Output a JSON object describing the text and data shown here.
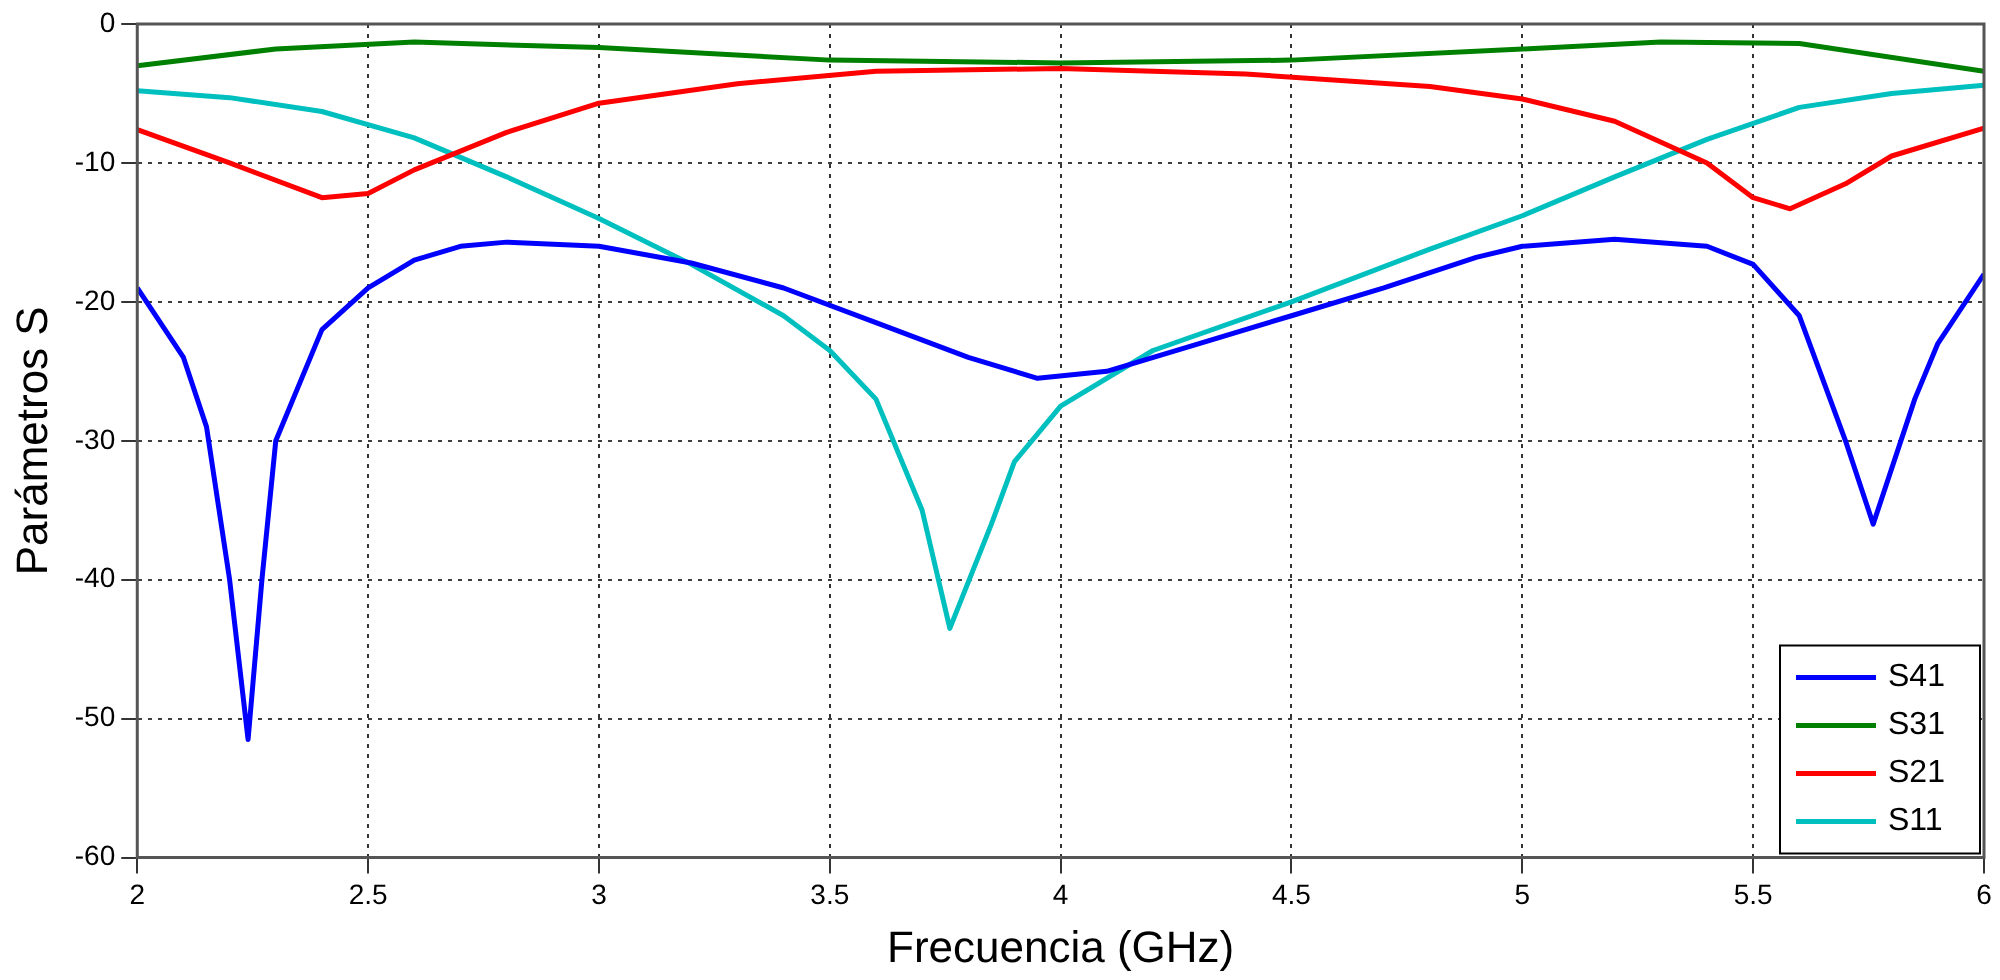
{
  "chart_data": {
    "type": "line",
    "xlabel": "Frecuencia (GHz)",
    "ylabel": "Parámetros S",
    "xlim": [
      2,
      6
    ],
    "xticks": [
      2,
      2.5,
      3,
      3.5,
      4,
      4.5,
      5,
      5.5,
      6
    ],
    "ylim": [
      -60,
      0
    ],
    "yticks": [
      -60,
      -50,
      -40,
      -30,
      -20,
      -10,
      0
    ],
    "grid": true,
    "line_style": "solid",
    "legend": "bottom right",
    "marker": "none",
    "series": [
      {
        "name": "S41",
        "color": "#0000ff",
        "x": [
          2.0,
          2.1,
          2.15,
          2.2,
          2.24,
          2.27,
          2.3,
          2.4,
          2.5,
          2.6,
          2.7,
          2.8,
          3.0,
          3.2,
          3.4,
          3.6,
          3.8,
          3.95,
          4.1,
          4.3,
          4.5,
          4.7,
          4.9,
          5.0,
          5.2,
          5.4,
          5.5,
          5.6,
          5.7,
          5.76,
          5.85,
          5.9,
          6.0
        ],
        "values": [
          -19,
          -24,
          -29,
          -40,
          -51.5,
          -40,
          -30,
          -22,
          -19,
          -17,
          -16,
          -15.7,
          -16,
          -17.2,
          -19,
          -21.5,
          -24,
          -25.5,
          -25,
          -23,
          -21,
          -19,
          -16.8,
          -16,
          -15.5,
          -16,
          -17.3,
          -21,
          -30,
          -36,
          -27,
          -23,
          -18
        ]
      },
      {
        "name": "S31",
        "color": "#008000",
        "x": [
          2.0,
          2.3,
          2.6,
          3.0,
          3.5,
          4.0,
          4.5,
          5.0,
          5.3,
          5.6,
          6.0
        ],
        "values": [
          -3,
          -1.8,
          -1.3,
          -1.7,
          -2.6,
          -2.8,
          -2.6,
          -1.8,
          -1.3,
          -1.4,
          -3.4
        ]
      },
      {
        "name": "S21",
        "color": "#ff0000",
        "x": [
          2.0,
          2.2,
          2.4,
          2.5,
          2.6,
          2.8,
          3.0,
          3.3,
          3.6,
          4.0,
          4.4,
          4.8,
          5.0,
          5.2,
          5.4,
          5.5,
          5.58,
          5.7,
          5.8,
          6.0
        ],
        "values": [
          -7.6,
          -10,
          -12.5,
          -12.2,
          -10.5,
          -7.8,
          -5.7,
          -4.3,
          -3.4,
          -3.2,
          -3.6,
          -4.5,
          -5.4,
          -7,
          -10,
          -12.5,
          -13.3,
          -11.5,
          -9.5,
          -7.5
        ]
      },
      {
        "name": "S11",
        "color": "#00bfbf",
        "x": [
          2.0,
          2.2,
          2.4,
          2.6,
          2.8,
          3.0,
          3.2,
          3.4,
          3.5,
          3.6,
          3.7,
          3.76,
          3.85,
          3.9,
          4.0,
          4.2,
          4.5,
          4.8,
          5.0,
          5.2,
          5.4,
          5.6,
          5.8,
          6.0
        ],
        "values": [
          -4.8,
          -5.3,
          -6.3,
          -8.2,
          -11,
          -14,
          -17.3,
          -21,
          -23.5,
          -27,
          -35,
          -43.5,
          -36,
          -31.5,
          -27.5,
          -23.5,
          -20,
          -16.2,
          -13.8,
          -11,
          -8.3,
          -6,
          -5,
          -4.4
        ]
      }
    ]
  }
}
